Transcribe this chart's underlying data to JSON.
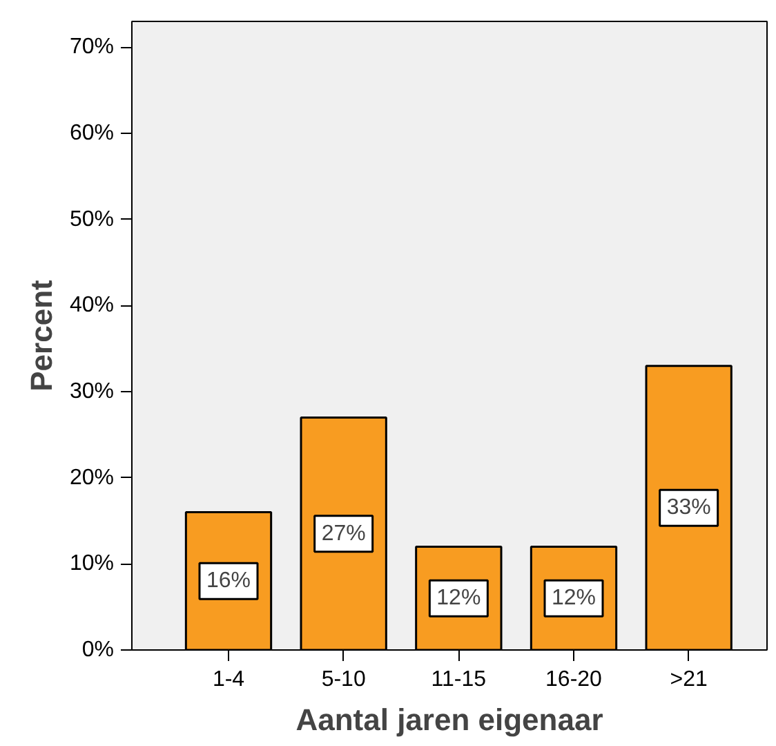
{
  "chart_data": {
    "type": "bar",
    "xlabel": "Aantal jaren eigenaar",
    "ylabel": "Percent",
    "categories": [
      "1-4",
      "5-10",
      "11-15",
      "16-20",
      ">21"
    ],
    "values": [
      16,
      27,
      12,
      12,
      33
    ],
    "value_labels": [
      "16%",
      "27%",
      "12%",
      "12%",
      "33%"
    ],
    "color": "#f89c21",
    "ylim": [
      0,
      73
    ],
    "yticks": [
      {
        "value": 0,
        "label": "0%"
      },
      {
        "value": 10,
        "label": "10%"
      },
      {
        "value": 20,
        "label": "20%"
      },
      {
        "value": 30,
        "label": "30%"
      },
      {
        "value": 40,
        "label": "40%"
      },
      {
        "value": 50,
        "label": "50%"
      },
      {
        "value": 60,
        "label": "60%"
      },
      {
        "value": 70,
        "label": "70%"
      }
    ],
    "grid": false
  }
}
